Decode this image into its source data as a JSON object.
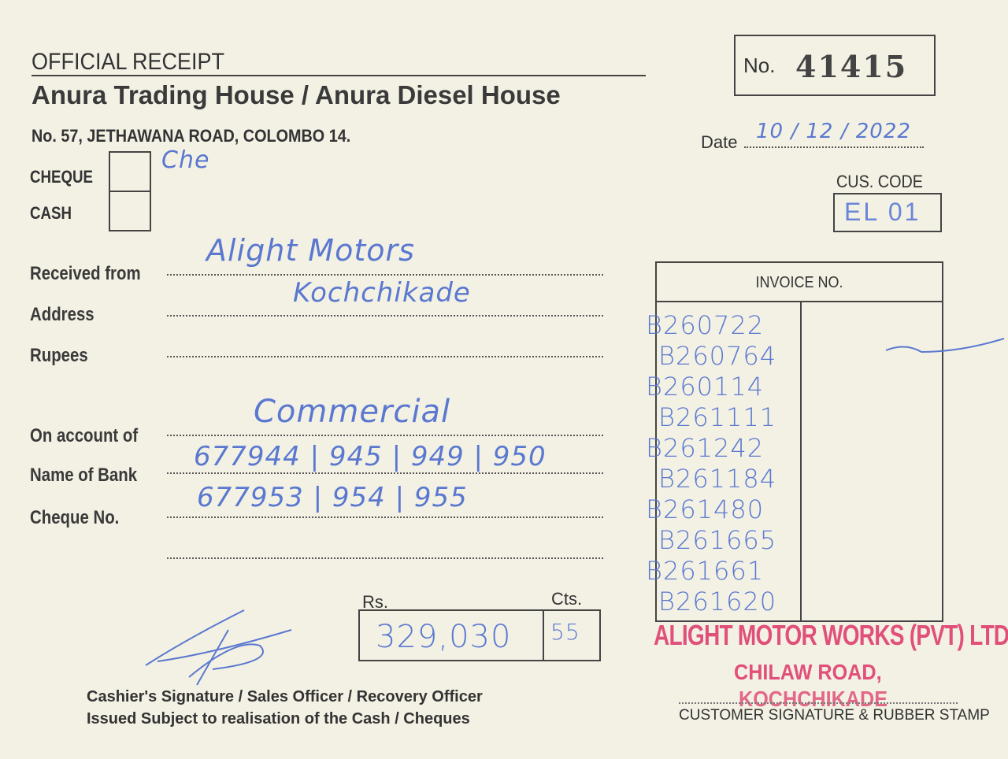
{
  "header": {
    "title": "OFFICIAL RECEIPT",
    "company": "Anura Trading House / Anura Diesel House",
    "address": "No. 57, JETHAWANA ROAD, COLOMBO 14.",
    "receipt_no_label": "No.",
    "receipt_no": "41415"
  },
  "date": {
    "label": "Date",
    "value": "10 / 12 / 2022"
  },
  "customer_code": {
    "label": "CUS. CODE",
    "value": "EL 01"
  },
  "payment_type": {
    "cheque_label": "CHEQUE",
    "cash_label": "CASH",
    "cheque_mark": "Che",
    "cheque_checked": true,
    "cash_checked": false
  },
  "fields": {
    "received_from_label": "Received from",
    "received_from": "Alight Motors",
    "address_label": "Address",
    "address": "Kochchikade",
    "rupees_label": "Rupees",
    "rupees": "",
    "on_account_label": "On account of",
    "on_account": "Commercial",
    "bank_label": "Name of Bank",
    "bank": "677944 | 945 | 949 | 950",
    "cheque_no_label": "Cheque No.",
    "cheque_no": "677953 | 954 | 955"
  },
  "amount": {
    "rs_label": "Rs.",
    "cts_label": "Cts.",
    "rs": "329,030",
    "cts": "55"
  },
  "invoices": {
    "header": "INVOICE NO.",
    "items": [
      "B260722",
      "B260764",
      "B260114",
      "B261111",
      "B261242",
      "B261184",
      "B261480",
      "B261665",
      "B261661",
      "B261620"
    ]
  },
  "footer": {
    "line1": "Cashier's Signature / Sales Officer / Recovery Officer",
    "line2": "Issued Subject to realisation of the Cash / Cheques",
    "customer_sig": "CUSTOMER SIGNATURE & RUBBER STAMP"
  },
  "stamp": {
    "line1": "ALIGHT MOTOR WORKS (PVT) LTD",
    "line2": "CHILAW ROAD,",
    "line3": "KOCHCHIKADE"
  },
  "colors": {
    "paper": "#f3f1e4",
    "ink": "#5a78d0",
    "stamp": "#e0507a"
  }
}
